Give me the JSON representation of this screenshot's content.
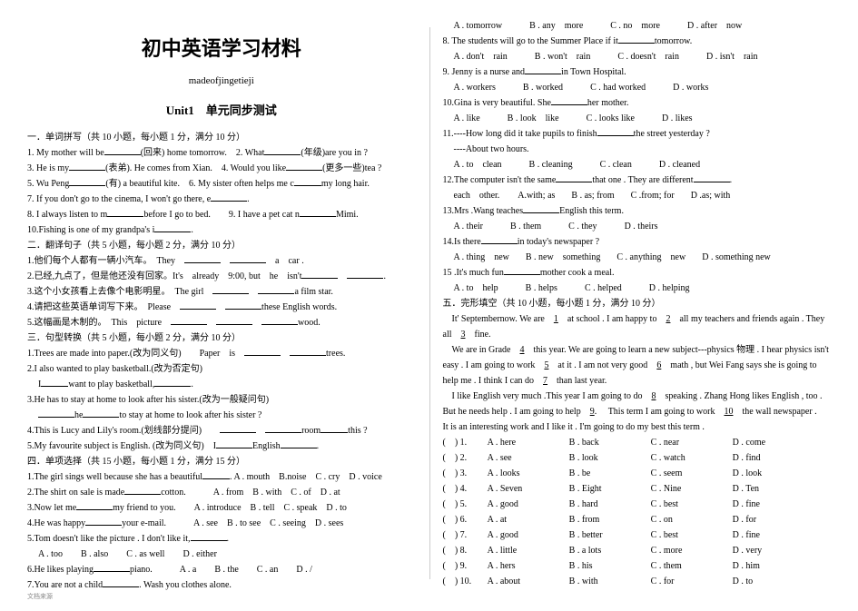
{
  "header": {
    "main_title": "初中英语学习材料",
    "subtitle": "madeofjingetieji",
    "unit_title": "Unit1　单元同步测试"
  },
  "left": {
    "sec1_header": "一．单词拼写（共 10 小题，每小题 1 分，满分 10 分）",
    "q1a": "1. My mother will be",
    "q1b": "(回来) home tomorrow.　2. What",
    "q1c": "(年级)are you in ?",
    "q3a": "3. He is my",
    "q3b": "(表弟). He comes from Xian.　4. Would you like",
    "q3c": "(更多一些)tea ?",
    "q5a": "5. Wu Peng",
    "q5b": "(有) a beautiful kite.　6. My sister often helps me c",
    "q5c": "my long hair.",
    "q7a": "7. If you don't go to the cinema, I won't go there, e",
    "q7b": ".",
    "q8a": "8. I always listen to m",
    "q8b": "before I go to bed.　　9. I have a pet cat n",
    "q8c": "Mimi.",
    "q10": "10.Fishing is one of my grandpa's i",
    "q10b": ".",
    "sec2_header": "二．翻译句子（共 5 小题，每小题 2 分，满分 10 分）",
    "t1a": "1.他们每个人都有一辆小汽车。　They",
    "t1b": "a　car .",
    "t2a": "2.已经,九点了，但是他还没有回家。It's　already　9:00, but　he　isn't",
    "t2b": ".",
    "t3a": "3.这个小女孩看上去像个电影明星。　The girl",
    "t3b": "a film star.",
    "t4a": "4.请把这些英语单词写下来。　Please",
    "t4b": "these English words.",
    "t5a": "5.这幅画是木制的。　This　picture",
    "t5b": "wood.",
    "sec3_header": "三．句型转换（共 5 小题，每小题 2 分，满分 10 分）",
    "s1a": "1.Trees are made into paper.(改为同义句)　　Paper　is",
    "s1b": "trees.",
    "s2": "2.I also wanted to play basketball.(改为否定句)",
    "s2a": "I",
    "s2b": "want to play basketball,",
    "s2c": ".",
    "s3": "3.He has to stay at home to look after his sister.(改为一般疑问句)",
    "s3a": "",
    "s3b": "he",
    "s3c": "to stay at home to look after his sister ?",
    "s4": "4.This is Lucy and Lily's room.(划线部分提问)",
    "s4a": "",
    "s4b": "room",
    "s4c": "this ?",
    "s5a": "5.My favourite subject is English. (改为同义句)　I",
    "s5b": "English",
    "s5c": ".",
    "sec4_header": "四．单项选择（共 15 小题，每小题 1 分，满分 15 分）",
    "c1": "1.The girl sings well because she has a beautiful",
    "c1o": ". A . mouth　B.noise　C . cry　D . voice",
    "c2": "2.The shirt on sale is made",
    "c2b": "cotton.",
    "c2o": "A . from　B . with　C . of　D . at",
    "c3": "3.Now let me",
    "c3b": "my friend to you.",
    "c3o": "A . introduce　B . tell　C . speak　D . to",
    "c4": "4.He was happy",
    "c4b": "your e-mail.",
    "c4o": "A . see　B . to see　C . seeing　D . sees",
    "c5": "5.Tom doesn't like the picture . I don't like it,",
    "c5b": ".",
    "c5o": "A . too　　B . also　　C . as well　　D . either",
    "c6": "6.He likes playing",
    "c6b": "piano.",
    "c6o": "A . a　　B . the　　C . an　　D . /",
    "c7": "7.You are not a child",
    "c7b": ". Wash you clothes alone."
  },
  "right": {
    "c7o_a": "A . tomorrow",
    "c7o_b": "B . any　more",
    "c7o_c": "C . no　more",
    "c7o_d": "D . after　now",
    "c8": "8. The students will go to the Summer Place if it",
    "c8b": "tomorrow.",
    "c8o_a": "A . don't　rain",
    "c8o_b": "B . won't　rain",
    "c8o_c": "C . doesn't　rain",
    "c8o_d": "D . isn't　rain",
    "c9": "9. Jenny is a nurse and",
    "c9b": "in Town Hospital.",
    "c9o_a": "A . workers",
    "c9o_b": "B . worked",
    "c9o_c": "C . had worked",
    "c9o_d": "D . works",
    "c10": "10.Gina is very beautiful. She",
    "c10b": "her mother.",
    "c10o_a": "A . like",
    "c10o_b": "B . look　like",
    "c10o_c": "C . looks like",
    "c10o_d": "D . likes",
    "c11": "11.----How long did it take pupils to finish",
    "c11b": "the street yesterday ?",
    "c11c": "----About two hours.",
    "c11o_a": "A . to　clean",
    "c11o_b": "B . cleaning",
    "c11o_c": "C . clean",
    "c11o_d": "D . cleaned",
    "c12": "12.The computer isn't the same",
    "c12b": "that one . They are different",
    "c12c": ".",
    "c12o_a": "each　other.　　A.with; as",
    "c12o_b": "B . as; from",
    "c12o_c": "C .from; for",
    "c12o_d": "D .as; with",
    "c13": "13.Mrs .Wang teaches",
    "c13b": "English this term.",
    "c13o_a": "A . their",
    "c13o_b": "B . them",
    "c13o_c": "C . they",
    "c13o_d": "D . theirs",
    "c14": "14.Is there",
    "c14b": "in today's newspaper ?",
    "c14o_a": "A . thing　new",
    "c14o_b": "B . new　something",
    "c14o_c": "C . anything　new",
    "c14o_d": "D . something new",
    "c15": "15 .It's much fun",
    "c15b": "mother cook a meal.",
    "c15o_a": "A . to　help",
    "c15o_b": "B . helps",
    "c15o_c": "C . helped",
    "c15o_d": "D . helping",
    "sec5_header": "五．完形填空（共 10 小题，每小题 1 分，满分 10 分）",
    "p1": "　It' Septembernow. We are　",
    "p1n1": "1",
    "p1b": "　at school . I am happy to　",
    "p1n2": "2",
    "p1c": "　all my teachers and friends again . They all　",
    "p1n3": "3",
    "p1d": "　fine.",
    "p2a": "　We are in Grade　",
    "p2n4": "4",
    "p2b": "　this year. We are going to learn a new subject---physics 物理 . I hear physics isn't easy . I am going to work　",
    "p2n5": "5",
    "p2c": "　at it . I am not very good　",
    "p2n6": "6",
    "p2d": "　math , but Wei Fang says she is going to help me . I think I can do　",
    "p2n7": "7",
    "p2e": "　than last year.",
    "p3a": "　I like English very much .This year I am going to do　",
    "p3n8": "8",
    "p3b": "　speaking . Zhang Hong likes English , too . But he needs help . I am going to help　",
    "p3n9": "9",
    "p3c": ". 　This term I am going to work　",
    "p3n10": "10",
    "p3d": "　the wall newspaper .　It is an interesting work and I like it . I'm going to do my best this term .",
    "rows": [
      {
        "n": "1.",
        "a": "A . here",
        "b": "B . back",
        "c": "C . near",
        "d": "D . come"
      },
      {
        "n": "2.",
        "a": "A . see",
        "b": "B . look",
        "c": "C . watch",
        "d": "D . find"
      },
      {
        "n": "3.",
        "a": "A . looks",
        "b": "B . be",
        "c": "C . seem",
        "d": "D . look"
      },
      {
        "n": "4.",
        "a": "A . Seven",
        "b": "B . Eight",
        "c": "C . Nine",
        "d": "D . Ten"
      },
      {
        "n": "5.",
        "a": "A . good",
        "b": "B . hard",
        "c": "C . best",
        "d": "D . fine"
      },
      {
        "n": "6.",
        "a": "A . at",
        "b": "B . from",
        "c": "C . on",
        "d": "D . for"
      },
      {
        "n": "7.",
        "a": "A . good",
        "b": "B . better",
        "c": "C . best",
        "d": "D . fine"
      },
      {
        "n": "8.",
        "a": "A . little",
        "b": "B . a lots",
        "c": "C . more",
        "d": "D . very"
      },
      {
        "n": "9.",
        "a": "A . hers",
        "b": "B . his",
        "c": "C . them",
        "d": "D . him"
      },
      {
        "n": "10.",
        "a": "A . about",
        "b": "B . with",
        "c": "C . for",
        "d": "D . to"
      }
    ]
  },
  "footer": "文档来源"
}
